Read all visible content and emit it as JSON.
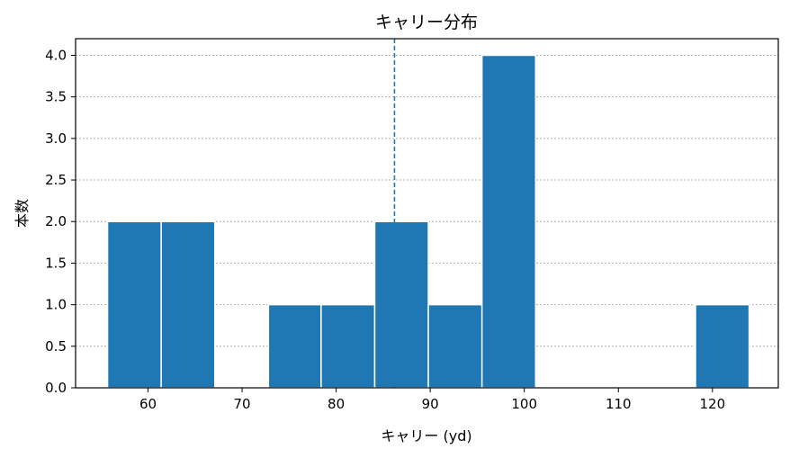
{
  "chart_data": {
    "type": "bar",
    "title": "キャリー分布",
    "xlabel": "キャリー (yd)",
    "ylabel": "本数",
    "xlim": [
      52.3,
      127.0
    ],
    "ylim": [
      0,
      4.2
    ],
    "xticks": [
      60,
      70,
      80,
      90,
      100,
      110,
      120
    ],
    "yticks": [
      0.0,
      0.5,
      1.0,
      1.5,
      2.0,
      2.5,
      3.0,
      3.5,
      4.0
    ],
    "bins": [
      {
        "x0": 55.7,
        "x1": 61.4,
        "count": 2
      },
      {
        "x0": 61.4,
        "x1": 67.1,
        "count": 2
      },
      {
        "x0": 67.1,
        "x1": 72.8,
        "count": 0
      },
      {
        "x0": 72.8,
        "x1": 78.4,
        "count": 1
      },
      {
        "x0": 78.4,
        "x1": 84.1,
        "count": 1
      },
      {
        "x0": 84.1,
        "x1": 89.8,
        "count": 2
      },
      {
        "x0": 89.8,
        "x1": 95.5,
        "count": 1
      },
      {
        "x0": 95.5,
        "x1": 101.2,
        "count": 4
      },
      {
        "x0": 101.2,
        "x1": 106.9,
        "count": 0
      },
      {
        "x0": 106.9,
        "x1": 112.6,
        "count": 0
      },
      {
        "x0": 112.6,
        "x1": 118.2,
        "count": 0
      },
      {
        "x0": 118.2,
        "x1": 123.9,
        "count": 1
      }
    ],
    "mean_line": 86.2,
    "grid": true,
    "colors": {
      "bar": "#1f77b4",
      "mean_line": "#1f77b4",
      "grid": "#b0b0b0"
    }
  }
}
